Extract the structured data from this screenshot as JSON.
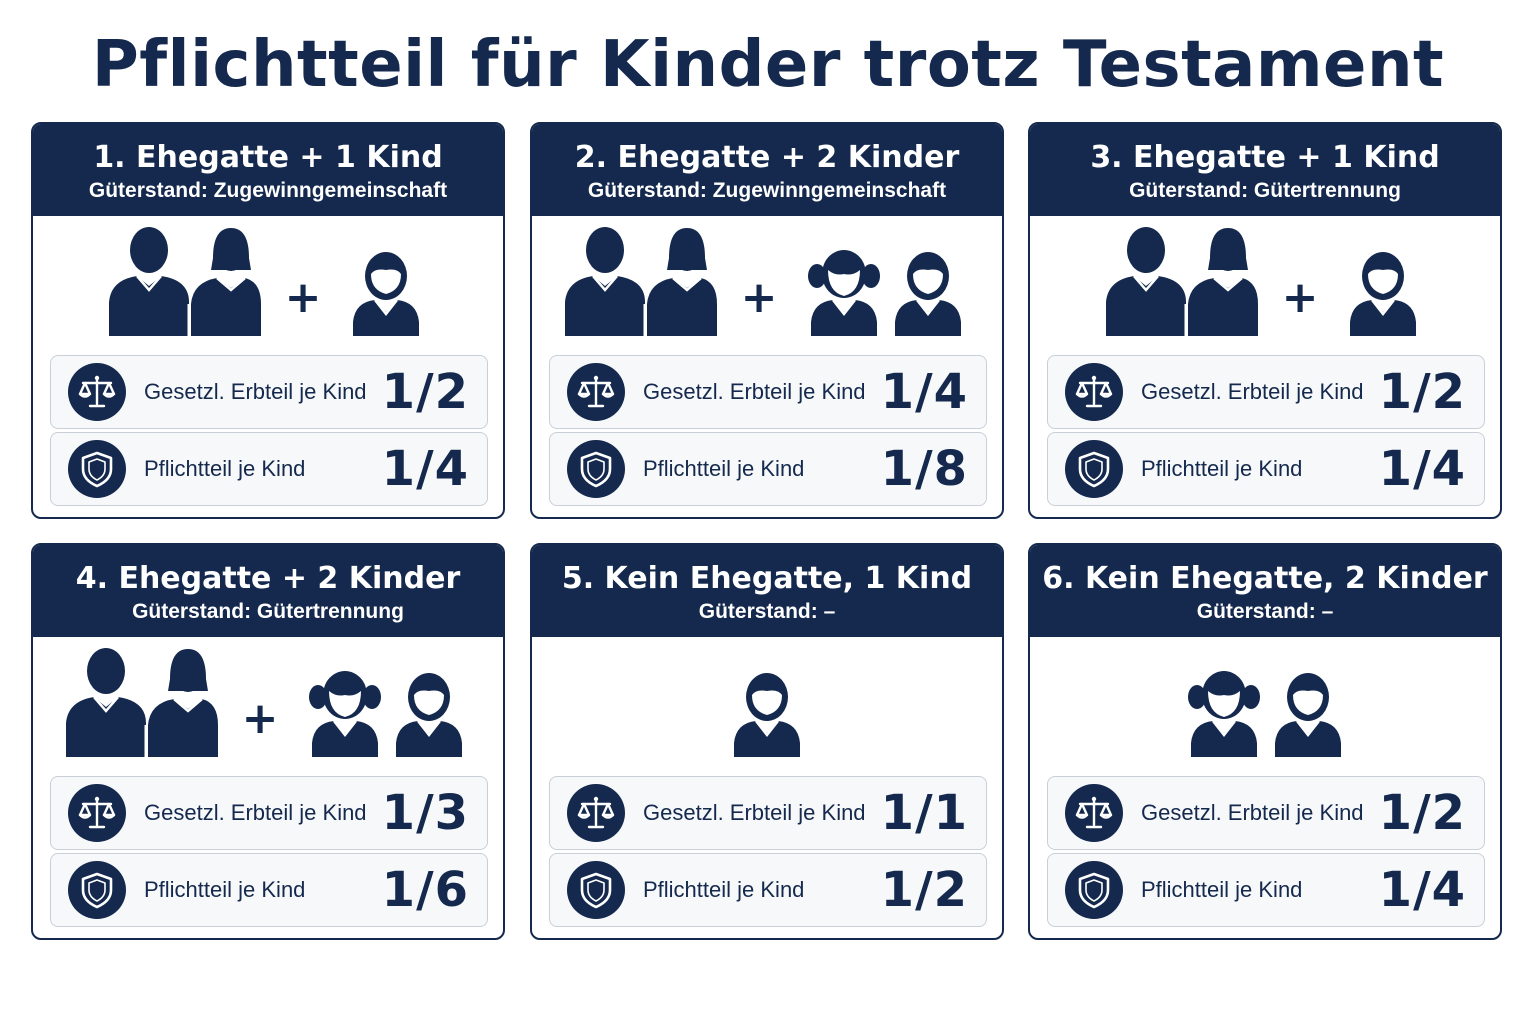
{
  "title": "Pflichtteil für Kinder trotz Testament",
  "colors": {
    "navy": "#14294d",
    "row_bg": "#f7f8fa",
    "row_border": "#c9cfd8"
  },
  "cards": [
    {
      "title": "1. Ehegatte + 1 Kind",
      "subtitle": "Güterstand: Zugewinngemeinschaft",
      "people": [
        "parents-icon",
        "plus",
        "boy-icon"
      ],
      "rows": [
        {
          "icon": "scales-icon",
          "label": "Gesetzl. Erbteil je Kind",
          "value": "1/2"
        },
        {
          "icon": "shield-icon",
          "label": "Pflichtteil je Kind",
          "value": "1/4"
        }
      ]
    },
    {
      "title": "2. Ehegatte + 2 Kinder",
      "subtitle": "Güterstand: Zugewinngemeinschaft",
      "people": [
        "parents-icon",
        "plus",
        "girl-icon",
        "boy-icon"
      ],
      "rows": [
        {
          "icon": "scales-icon",
          "label": "Gesetzl. Erbteil je Kind",
          "value": "1/4"
        },
        {
          "icon": "shield-icon",
          "label": "Pflichtteil je Kind",
          "value": "1/8"
        }
      ]
    },
    {
      "title": "3. Ehegatte + 1 Kind",
      "subtitle": "Güterstand: Gütertrennung",
      "people": [
        "parents-icon",
        "plus",
        "boy-icon"
      ],
      "rows": [
        {
          "icon": "scales-icon",
          "label": "Gesetzl. Erbteil je Kind",
          "value": "1/2"
        },
        {
          "icon": "shield-icon",
          "label": "Pflichtteil je Kind",
          "value": "1/4"
        }
      ]
    },
    {
      "title": "4. Ehegatte + 2 Kinder",
      "subtitle": "Güterstand: Gütertrennung",
      "people": [
        "parents-icon",
        "plus",
        "girl-icon",
        "boy-icon"
      ],
      "rows": [
        {
          "icon": "scales-icon",
          "label": "Gesetzl. Erbteil je Kind",
          "value": "1/3"
        },
        {
          "icon": "shield-icon",
          "label": "Pflichtteil je Kind",
          "value": "1/6"
        }
      ]
    },
    {
      "title": "5. Kein Ehegatte, 1 Kind",
      "subtitle": "Güterstand: –",
      "people": [
        "boy-icon"
      ],
      "rows": [
        {
          "icon": "scales-icon",
          "label": "Gesetzl. Erbteil je Kind",
          "value": "1/1"
        },
        {
          "icon": "shield-icon",
          "label": "Pflichtteil je Kind",
          "value": "1/2"
        }
      ]
    },
    {
      "title": "6. Kein Ehegatte, 2 Kinder",
      "subtitle": "Güterstand: –",
      "people": [
        "girl-icon",
        "boy-icon"
      ],
      "rows": [
        {
          "icon": "scales-icon",
          "label": "Gesetzl. Erbteil je Kind",
          "value": "1/2"
        },
        {
          "icon": "shield-icon",
          "label": "Pflichtteil je Kind",
          "value": "1/4"
        }
      ]
    }
  ]
}
